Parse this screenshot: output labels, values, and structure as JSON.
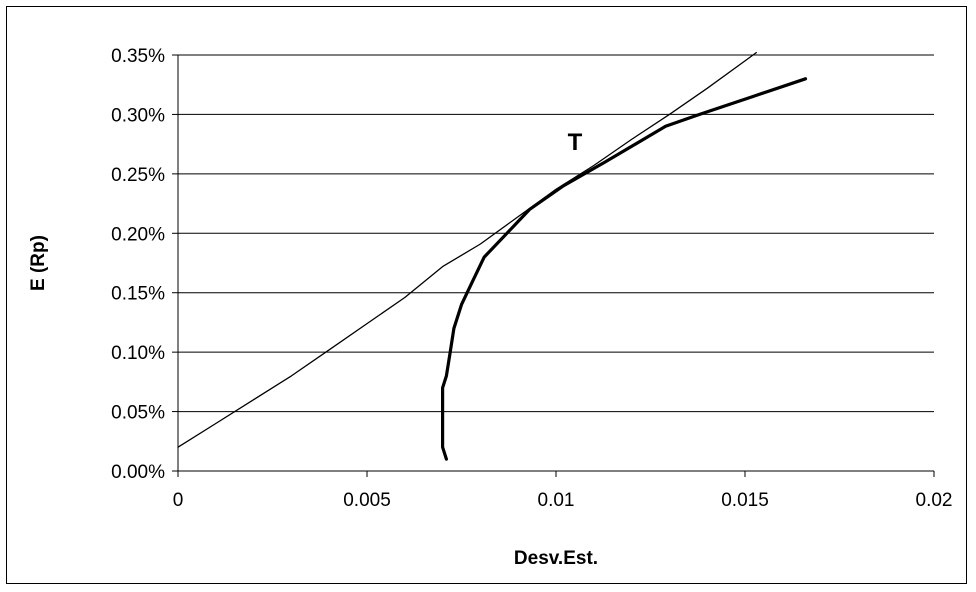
{
  "chart_data": {
    "type": "line",
    "title": "",
    "xlabel": "Desv.Est.",
    "ylabel": "E (Rp)",
    "xlim": [
      0,
      0.02
    ],
    "ylim": [
      0,
      0.0035
    ],
    "x_ticks": [
      {
        "value": 0,
        "label": "0"
      },
      {
        "value": 0.005,
        "label": "0.005"
      },
      {
        "value": 0.01,
        "label": "0.01"
      },
      {
        "value": 0.015,
        "label": "0.015"
      },
      {
        "value": 0.02,
        "label": "0.02"
      }
    ],
    "y_ticks": [
      {
        "value": 0,
        "label": "0.00%"
      },
      {
        "value": 0.0005,
        "label": "0.05%"
      },
      {
        "value": 0.001,
        "label": "0.10%"
      },
      {
        "value": 0.0015,
        "label": "0.15%"
      },
      {
        "value": 0.002,
        "label": "0.20%"
      },
      {
        "value": 0.0025,
        "label": "0.25%"
      },
      {
        "value": 0.003,
        "label": "0.30%"
      },
      {
        "value": 0.0035,
        "label": "0.35%"
      }
    ],
    "grid": "horizontal",
    "legend": "none",
    "series": [
      {
        "line_style": "thin",
        "color": "#000000",
        "points": [
          [
            0,
            0.0002
          ],
          [
            0.001,
            0.0004
          ],
          [
            0.002,
            0.0006
          ],
          [
            0.003,
            0.0008
          ],
          [
            0.004,
            0.00102
          ],
          [
            0.005,
            0.00124
          ],
          [
            0.006,
            0.00146
          ],
          [
            0.007,
            0.00172
          ],
          [
            0.008,
            0.00191
          ],
          [
            0.009,
            0.00214
          ],
          [
            0.01,
            0.00237
          ],
          [
            0.011,
            0.00257
          ],
          [
            0.012,
            0.00279
          ],
          [
            0.013,
            0.003
          ],
          [
            0.014,
            0.00322
          ],
          [
            0.015,
            0.00345
          ],
          [
            0.0153,
            0.00352
          ]
        ]
      },
      {
        "line_style": "thick",
        "color": "#000000",
        "points": [
          [
            0.0071,
            0.0001
          ],
          [
            0.007,
            0.0002
          ],
          [
            0.007,
            0.0003
          ],
          [
            0.007,
            0.0005
          ],
          [
            0.007,
            0.0007
          ],
          [
            0.0071,
            0.0008
          ],
          [
            0.0072,
            0.001
          ],
          [
            0.0073,
            0.0012
          ],
          [
            0.0075,
            0.0014
          ],
          [
            0.0078,
            0.0016
          ],
          [
            0.0081,
            0.0018
          ],
          [
            0.0087,
            0.002
          ],
          [
            0.0093,
            0.0022
          ],
          [
            0.0102,
            0.0024
          ],
          [
            0.0113,
            0.0026
          ],
          [
            0.0129,
            0.0029
          ],
          [
            0.0138,
            0.003
          ],
          [
            0.0152,
            0.00315
          ],
          [
            0.0166,
            0.0033
          ]
        ]
      }
    ],
    "annotations": [
      {
        "text": "T",
        "x": 0.0105,
        "y": 0.0027
      }
    ]
  }
}
